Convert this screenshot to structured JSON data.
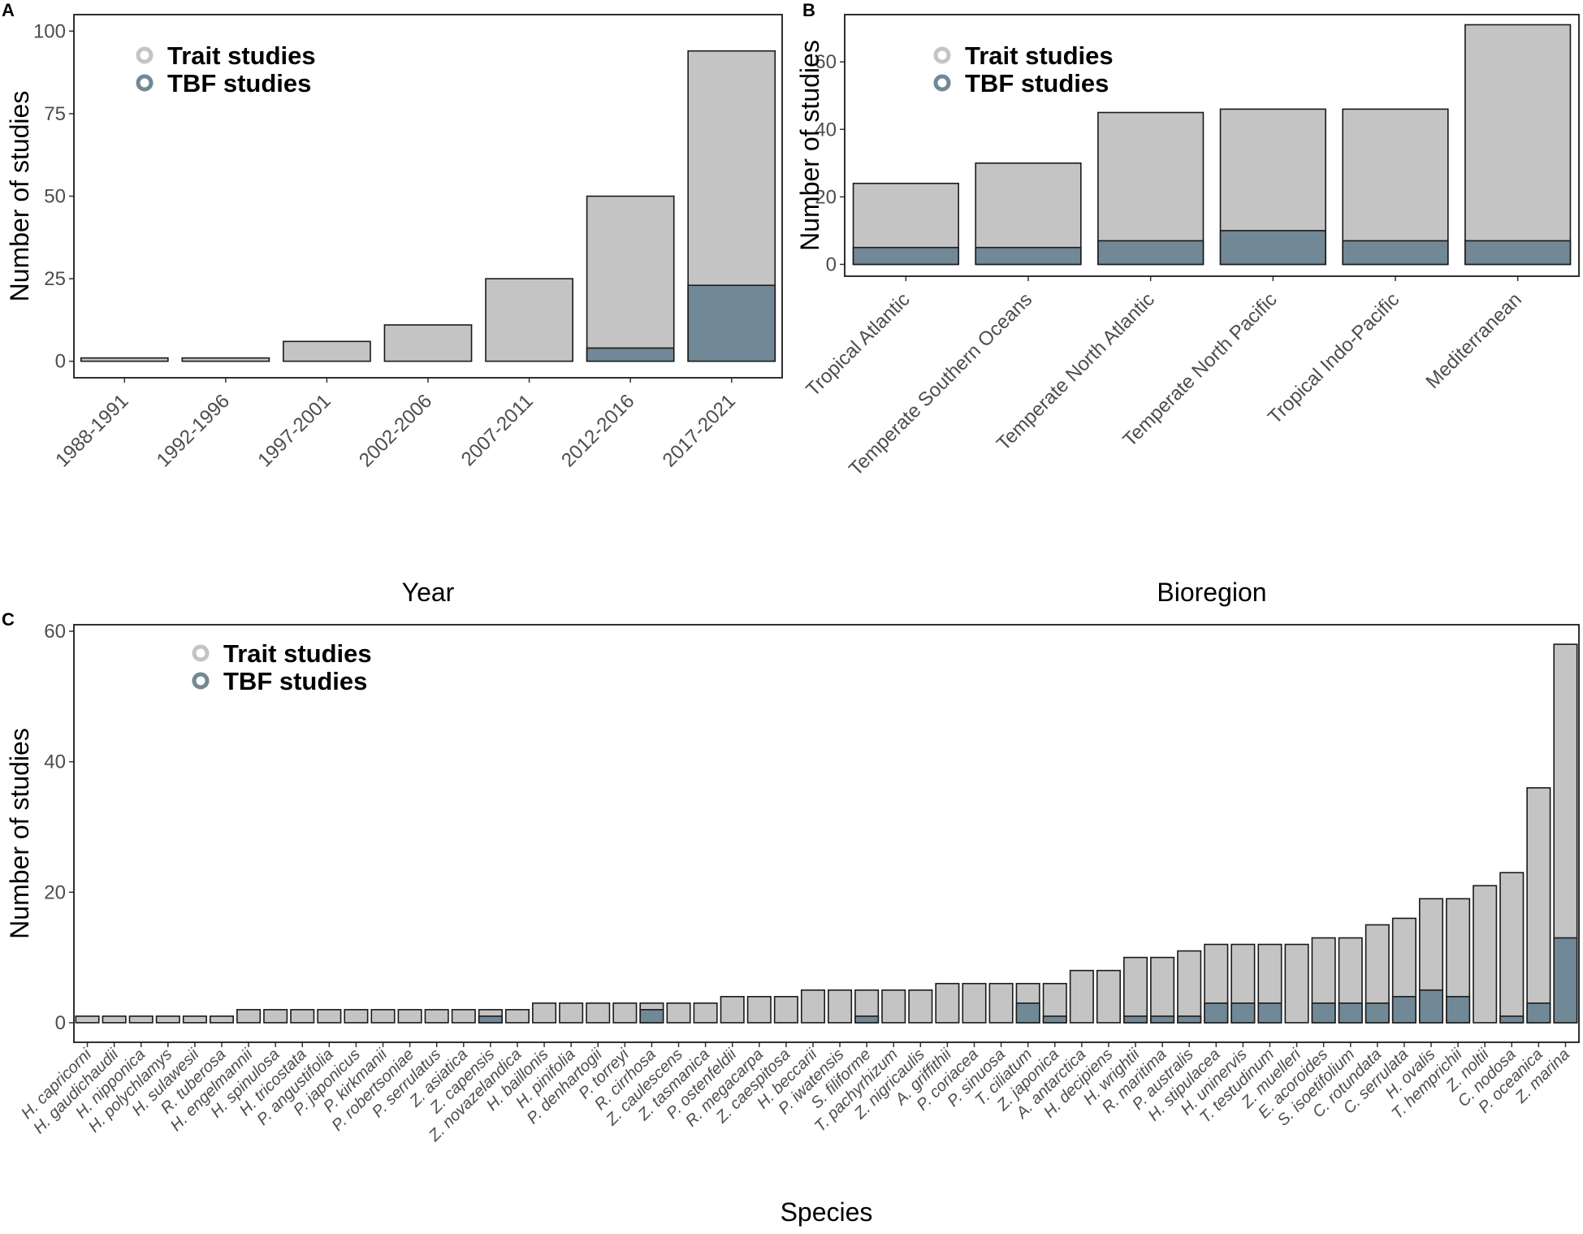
{
  "colors": {
    "trait": "#c4c4c4",
    "tbf": "#718896",
    "outline": "#1a1a1a",
    "tick_text": "#4d4d4d"
  },
  "legend": {
    "trait_label": "Trait studies",
    "tbf_label": "TBF studies"
  },
  "chart_data": [
    {
      "panel": "A",
      "type": "bar",
      "title": "",
      "xlabel": "Year",
      "ylabel": "Number of studies",
      "ylim": [
        -5,
        105
      ],
      "yticks": [
        0,
        25,
        50,
        75,
        100
      ],
      "legend_position": "top-left",
      "categories": [
        "1988-1991",
        "1992-1996",
        "1997-2001",
        "2002-2006",
        "2007-2011",
        "2012-2016",
        "2017-2021"
      ],
      "series": [
        {
          "name": "Trait studies",
          "values": [
            1,
            1,
            6,
            11,
            25,
            50,
            94
          ]
        },
        {
          "name": "TBF studies",
          "values": [
            0,
            0,
            0,
            0,
            0,
            4,
            23
          ]
        }
      ]
    },
    {
      "panel": "B",
      "type": "bar",
      "title": "",
      "xlabel": "Bioregion",
      "ylabel": "Number of studies",
      "ylim": [
        -3.5,
        74
      ],
      "yticks": [
        0,
        20,
        40,
        60
      ],
      "legend_position": "top-left",
      "categories": [
        "Tropical Atlantic",
        "Temperate Southern Oceans",
        "Temperate North Atlantic",
        "Temperate North Pacific",
        "Tropical Indo-Pacific",
        "Mediterranean"
      ],
      "series": [
        {
          "name": "Trait studies",
          "values": [
            24,
            30,
            45,
            46,
            46,
            71
          ]
        },
        {
          "name": "TBF studies",
          "values": [
            5,
            5,
            7,
            10,
            7,
            7
          ]
        }
      ]
    },
    {
      "panel": "C",
      "type": "bar",
      "title": "",
      "xlabel": "Species",
      "ylabel": "Number of studies",
      "ylim": [
        -3,
        61
      ],
      "yticks": [
        0,
        20,
        40,
        60
      ],
      "legend_position": "top-left",
      "categories": [
        "H. capricorni",
        "H. gaudichaudii",
        "H. nipponica",
        "H. polychlamys",
        "H. sulawesii",
        "R. tuberosa",
        "H. engelmannii",
        "H. spinulosa",
        "H. tricostata",
        "P. angustifolia",
        "P. japonicus",
        "P. kirkmanii",
        "P. robertsoniae",
        "P. serrulatus",
        "Z. asiatica",
        "Z. capensis",
        "Z. novazelandica",
        "H. baillonis",
        "H. pinifolia",
        "P. denhartogii",
        "P. torreyi",
        "R. cirrhosa",
        "Z. caulescens",
        "Z. tasmanica",
        "P. ostenfeldii",
        "R. megacarpa",
        "Z. caespitosa",
        "H. beccarii",
        "P. iwatensis",
        "S. filiforme",
        "T. pachyrhizum",
        "Z. nigricaulis",
        "A. griffithii",
        "P. coriacea",
        "P. sinuosa",
        "T. ciliatum",
        "Z. japonica",
        "A. antarctica",
        "H. decipiens",
        "H. wrightii",
        "R. maritima",
        "P. australis",
        "H. stipulacea",
        "H. uninervis",
        "T. testudinum",
        "Z. muelleri",
        "E. acoroides",
        "S. isoetifolium",
        "C. rotundata",
        "C. serrulata",
        "H. ovalis",
        "T. hemprichii",
        "Z. noltii",
        "C. nodosa",
        "P. oceanica",
        "Z. marina"
      ],
      "series": [
        {
          "name": "Trait studies",
          "values": [
            1,
            1,
            1,
            1,
            1,
            1,
            2,
            2,
            2,
            2,
            2,
            2,
            2,
            2,
            2,
            2,
            2,
            3,
            3,
            3,
            3,
            3,
            3,
            3,
            4,
            4,
            4,
            5,
            5,
            5,
            5,
            5,
            6,
            6,
            6,
            6,
            6,
            8,
            8,
            10,
            10,
            11,
            12,
            12,
            12,
            12,
            13,
            13,
            15,
            16,
            19,
            19,
            21,
            23,
            36,
            58
          ]
        },
        {
          "name": "TBF studies",
          "values": [
            0,
            0,
            0,
            0,
            0,
            0,
            0,
            0,
            0,
            0,
            0,
            0,
            0,
            0,
            0,
            1,
            0,
            0,
            0,
            0,
            0,
            2,
            0,
            0,
            0,
            0,
            0,
            0,
            0,
            1,
            0,
            0,
            0,
            0,
            0,
            3,
            1,
            0,
            0,
            1,
            1,
            1,
            3,
            3,
            3,
            0,
            3,
            3,
            3,
            4,
            5,
            4,
            0,
            1,
            3,
            13
          ]
        }
      ]
    }
  ]
}
